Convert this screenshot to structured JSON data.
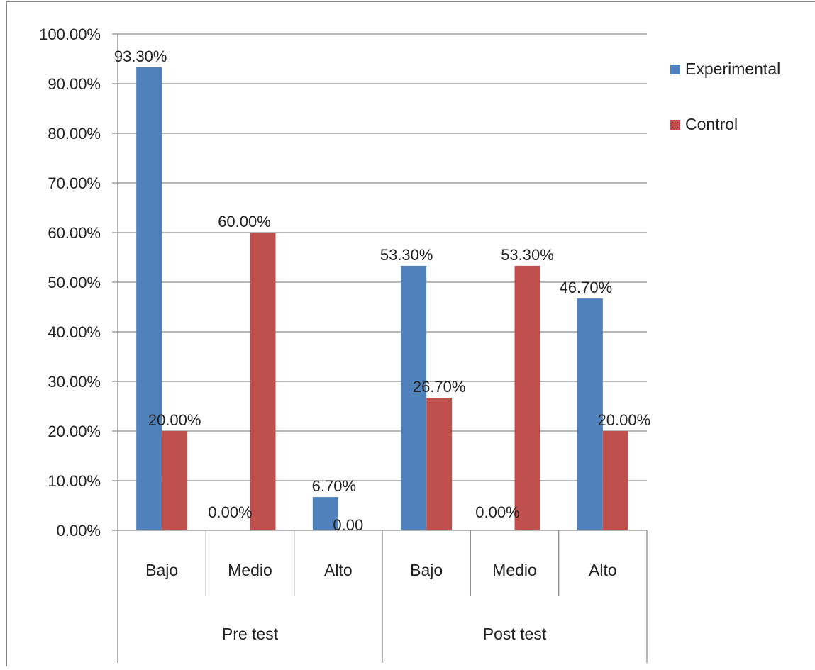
{
  "chart_data": {
    "type": "bar",
    "title": "",
    "xlabel": "",
    "ylabel": "",
    "ylim": [
      0,
      1
    ],
    "y_ticks": [
      "0.00%",
      "10.00%",
      "20.00%",
      "30.00%",
      "40.00%",
      "50.00%",
      "60.00%",
      "70.00%",
      "80.00%",
      "90.00%",
      "100.00%"
    ],
    "grid": true,
    "legend_position": "right",
    "categories": [
      "Bajo",
      "Medio",
      "Alto",
      "Bajo",
      "Medio",
      "Alto"
    ],
    "groups": [
      {
        "label": "Pre test",
        "categories": [
          "Bajo",
          "Medio",
          "Alto"
        ]
      },
      {
        "label": "Post test",
        "categories": [
          "Bajo",
          "Medio",
          "Alto"
        ]
      }
    ],
    "series": [
      {
        "name": "Experimental",
        "color": "#4F81BD",
        "values": [
          0.933,
          0.0,
          0.067,
          0.533,
          0.0,
          0.467
        ],
        "data_labels": [
          "93.30%",
          "0.00%",
          "6.70%",
          "53.30%",
          "0.00%",
          "46.70%"
        ]
      },
      {
        "name": "Control",
        "color": "#C0504D",
        "values": [
          0.2,
          0.6,
          0.0,
          0.267,
          0.533,
          0.2
        ],
        "data_labels": [
          "20.00%",
          "60.00%",
          "0.00",
          "26.70%",
          "53.30%",
          "20.00%"
        ]
      }
    ]
  }
}
